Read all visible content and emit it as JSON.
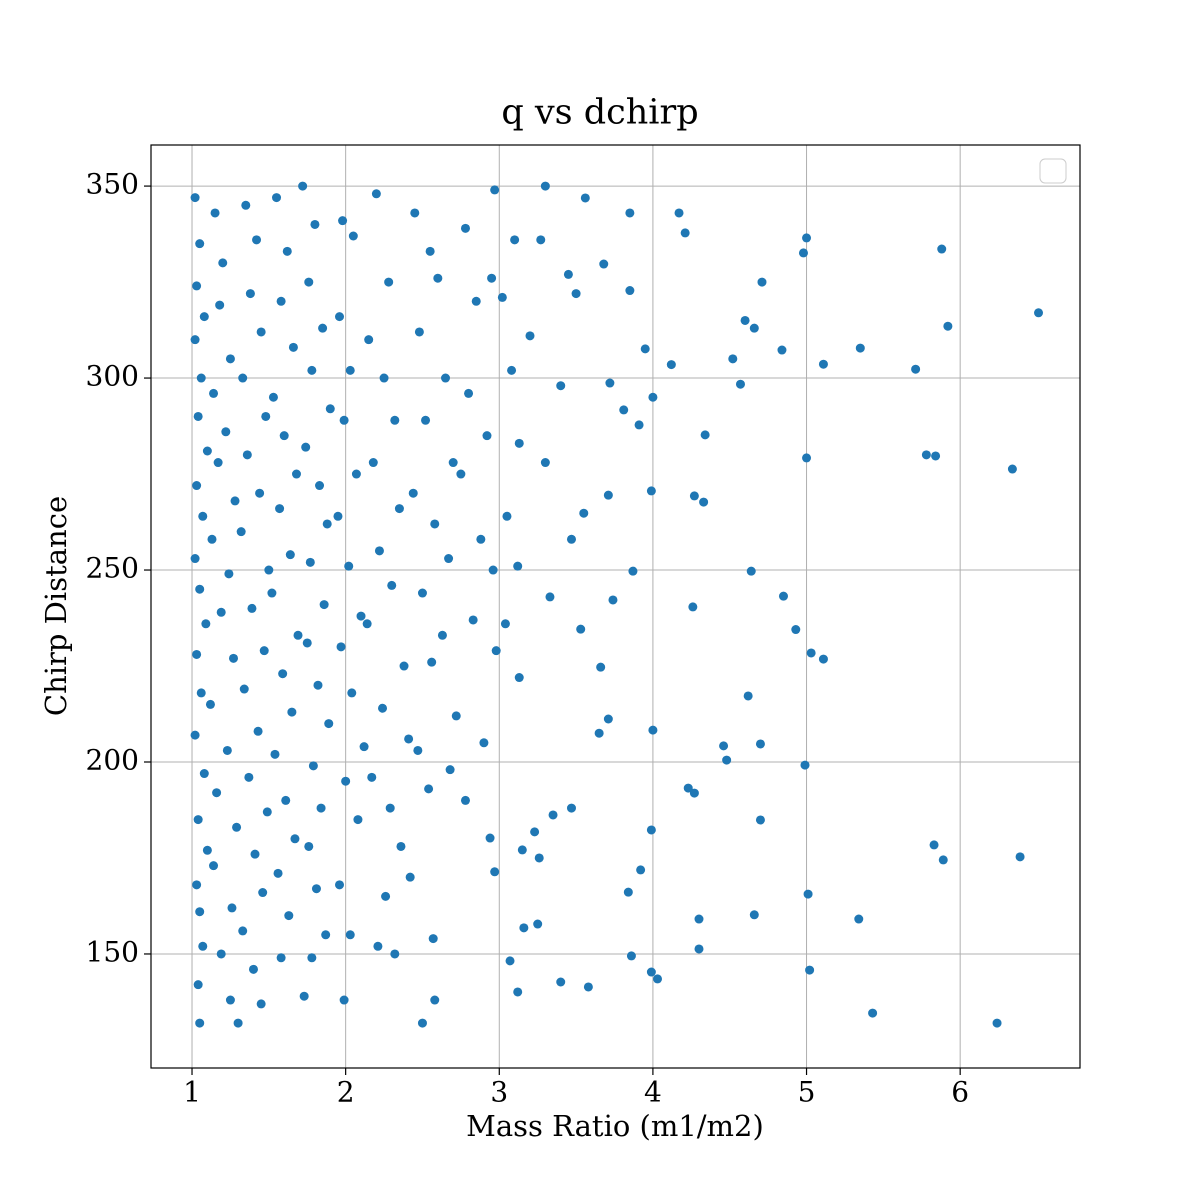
{
  "chart_data": {
    "type": "scatter",
    "title": "q vs dchirp",
    "x_label": "Mass Ratio (m1/m2)",
    "y_label": "Chirp Distance",
    "color": "#1f77b4",
    "grid": true,
    "xlim": [
      0.733,
      6.78
    ],
    "ylim": [
      120.3,
      360.7
    ],
    "xticks": [
      1,
      2,
      3,
      4,
      5,
      6
    ],
    "yticks": [
      150,
      200,
      250,
      300,
      350
    ],
    "x": [
      6.51,
      5.88,
      5.92,
      5.0,
      4.98,
      4.71,
      4.6,
      4.66,
      4.84,
      5.35,
      5.71,
      5.11,
      4.52,
      4.57,
      4.12,
      3.95,
      4.0,
      3.91,
      3.81,
      3.72,
      4.34,
      5.0,
      5.78,
      5.84,
      6.34,
      4.27,
      4.33,
      3.99,
      3.71,
      3.55,
      3.47,
      3.87,
      4.64,
      4.85,
      4.26,
      4.93,
      5.03,
      5.11,
      3.74,
      3.53,
      3.66,
      3.71,
      4.0,
      3.65,
      4.62,
      4.7,
      4.46,
      4.48,
      4.99,
      4.23,
      4.27,
      4.7,
      3.99,
      5.83,
      5.89,
      6.39,
      3.92,
      3.84,
      5.01,
      4.66,
      4.3,
      5.34,
      4.3,
      3.86,
      3.99,
      4.03,
      5.02,
      5.43,
      6.24,
      3.4,
      3.58,
      3.12,
      3.07,
      3.16,
      3.25,
      2.97,
      3.15,
      3.26,
      2.94,
      3.23,
      3.35,
      3.47,
      3.56,
      3.85,
      4.17,
      4.21,
      3.3,
      2.97,
      3.68,
      3.85,
      1.02,
      1.05,
      1.03,
      1.08,
      1.02,
      1.06,
      1.04,
      1.1,
      1.03,
      1.07,
      1.02,
      1.05,
      1.09,
      1.03,
      1.06,
      1.02,
      1.08,
      1.04,
      1.1,
      1.03,
      1.05,
      1.07,
      1.04,
      1.05,
      1.15,
      1.2,
      1.18,
      1.25,
      1.14,
      1.22,
      1.17,
      1.28,
      1.13,
      1.24,
      1.19,
      1.27,
      1.12,
      1.23,
      1.16,
      1.29,
      1.14,
      1.26,
      1.19,
      1.25,
      1.3,
      1.35,
      1.42,
      1.38,
      1.45,
      1.33,
      1.48,
      1.36,
      1.44,
      1.32,
      1.5,
      1.39,
      1.47,
      1.34,
      1.43,
      1.37,
      1.49,
      1.41,
      1.46,
      1.33,
      1.4,
      1.45,
      1.55,
      1.62,
      1.58,
      1.66,
      1.53,
      1.6,
      1.68,
      1.57,
      1.64,
      1.52,
      1.69,
      1.59,
      1.65,
      1.54,
      1.61,
      1.67,
      1.56,
      1.63,
      1.58,
      1.73,
      1.72,
      1.8,
      1.76,
      1.85,
      1.78,
      1.9,
      1.74,
      1.83,
      1.88,
      1.77,
      1.86,
      1.75,
      1.82,
      1.89,
      1.79,
      1.84,
      1.76,
      1.81,
      1.87,
      1.78,
      1.98,
      2.05,
      1.96,
      2.03,
      1.99,
      2.07,
      1.95,
      2.02,
      2.1,
      1.97,
      2.04,
      2.12,
      2.0,
      2.08,
      1.96,
      2.03,
      1.99,
      2.2,
      2.28,
      2.15,
      2.25,
      2.32,
      2.18,
      2.35,
      2.22,
      2.3,
      2.14,
      2.38,
      2.24,
      2.41,
      2.17,
      2.29,
      2.36,
      2.26,
      2.21,
      2.32,
      2.45,
      2.55,
      2.6,
      2.48,
      2.65,
      2.52,
      2.7,
      2.44,
      2.58,
      2.67,
      2.5,
      2.63,
      2.56,
      2.72,
      2.47,
      2.68,
      2.54,
      2.42,
      2.57,
      2.5,
      2.58,
      2.78,
      2.85,
      2.95,
      2.8,
      2.92,
      2.75,
      2.88,
      2.96,
      2.83,
      2.98,
      2.9,
      2.78,
      3.02,
      3.1,
      3.08,
      3.13,
      3.05,
      3.12,
      3.04,
      3.13,
      3.2,
      3.27,
      3.3,
      3.33,
      3.4,
      3.45,
      3.5
    ],
    "values": [
      317,
      333.6,
      313.5,
      336.5,
      332.6,
      325,
      315,
      313,
      307.3,
      307.8,
      302.3,
      303.6,
      305,
      298.4,
      303.5,
      307.6,
      295,
      287.8,
      291.7,
      298.7,
      285.2,
      279.2,
      280,
      279.7,
      276.3,
      269.3,
      267.7,
      270.6,
      269.5,
      264.8,
      258,
      249.7,
      249.7,
      243.2,
      240.4,
      234.5,
      228.4,
      226.8,
      242.2,
      234.6,
      224.7,
      211.2,
      208.3,
      207.5,
      217.2,
      204.7,
      204.2,
      200.5,
      199.2,
      193.2,
      191.9,
      184.9,
      182.3,
      178.4,
      174.5,
      175.3,
      171.9,
      166.1,
      165.6,
      160.2,
      159.1,
      159.1,
      151.3,
      149.5,
      145.3,
      143.5,
      145.8,
      134.6,
      132,
      142.7,
      141.4,
      140.1,
      148.2,
      156.8,
      157.8,
      171.4,
      177.1,
      175,
      180.2,
      181.8,
      186.2,
      188,
      346.9,
      343,
      343,
      337.8,
      350,
      349,
      329.7,
      322.8,
      347,
      335,
      324,
      316,
      310,
      300,
      290,
      281,
      272,
      264,
      253,
      245,
      236,
      228,
      218,
      207,
      197,
      185,
      177,
      168,
      161,
      152,
      142,
      132,
      343,
      330,
      319,
      305,
      296,
      286,
      278,
      268,
      258,
      249,
      239,
      227,
      215,
      203,
      192,
      183,
      173,
      162,
      150,
      138,
      132,
      345,
      336,
      322,
      312,
      300,
      290,
      280,
      270,
      260,
      250,
      240,
      229,
      219,
      208,
      196,
      187,
      176,
      166,
      156,
      146,
      137,
      347,
      333,
      320,
      308,
      295,
      285,
      275,
      266,
      254,
      244,
      233,
      223,
      213,
      202,
      190,
      180,
      171,
      160,
      149,
      139,
      350,
      340,
      325,
      313,
      302,
      292,
      282,
      272,
      262,
      252,
      241,
      231,
      220,
      210,
      199,
      188,
      178,
      167,
      155,
      149,
      341,
      337,
      316,
      302,
      289,
      275,
      264,
      251,
      238,
      230,
      218,
      204,
      195,
      185,
      168,
      155,
      138,
      348,
      325,
      310,
      300,
      289,
      278,
      266,
      255,
      246,
      236,
      225,
      214,
      206,
      196,
      188,
      178,
      165,
      152,
      150,
      343,
      333,
      326,
      312,
      300,
      289,
      278,
      270,
      262,
      253,
      244,
      233,
      226,
      212,
      203,
      198,
      193,
      170,
      154,
      132,
      138,
      339,
      320,
      326,
      296,
      285,
      275,
      258,
      250,
      237,
      229,
      205,
      190,
      321,
      336,
      302,
      283,
      264,
      251,
      236,
      222,
      311,
      336,
      278,
      243,
      298,
      327,
      322
    ]
  }
}
